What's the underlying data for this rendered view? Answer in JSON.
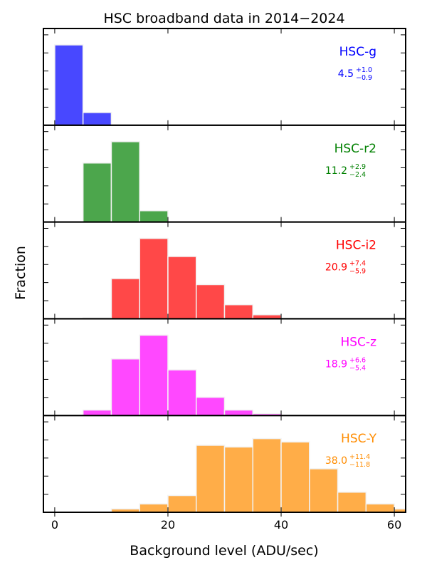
{
  "chart_data": {
    "type": "bar",
    "title": "HSC broadband data in 2014−2024",
    "xlabel": "Background level (ADU/sec)",
    "ylabel": "Fraction",
    "xlim": [
      -2,
      62
    ],
    "xticks": [
      0,
      20,
      40,
      60
    ],
    "xtick_labels": [
      "0",
      "20",
      "40",
      "60"
    ],
    "bin_width": 5,
    "panels": [
      {
        "name": "HSC-g",
        "color": "#0000ff",
        "bar_color": "#4848ff",
        "median": "4.5",
        "err_plus": "+1.0",
        "err_minus": "−0.9",
        "ylim": [
          0,
          0.82
        ],
        "bins": [
          {
            "x0": 0,
            "x1": 5,
            "value": 0.82
          },
          {
            "x0": 5,
            "x1": 10,
            "value": 0.13
          }
        ]
      },
      {
        "name": "HSC-r2",
        "color": "#008000",
        "bar_color": "#4ca64c",
        "median": "11.2",
        "err_plus": "+2.9",
        "err_minus": "−2.4",
        "ylim": [
          0,
          0.64
        ],
        "bins": [
          {
            "x0": 5,
            "x1": 10,
            "value": 0.47
          },
          {
            "x0": 10,
            "x1": 15,
            "value": 0.64
          },
          {
            "x0": 15,
            "x1": 20,
            "value": 0.09
          }
        ]
      },
      {
        "name": "HSC-i2",
        "color": "#ff0000",
        "bar_color": "#ff4848",
        "median": "20.9",
        "err_plus": "+7.4",
        "err_minus": "−5.9",
        "ylim": [
          0,
          0.4
        ],
        "bins": [
          {
            "x0": 5,
            "x1": 10,
            "value": 0.005
          },
          {
            "x0": 10,
            "x1": 15,
            "value": 0.2
          },
          {
            "x0": 15,
            "x1": 20,
            "value": 0.4
          },
          {
            "x0": 20,
            "x1": 25,
            "value": 0.31
          },
          {
            "x0": 25,
            "x1": 30,
            "value": 0.17
          },
          {
            "x0": 30,
            "x1": 35,
            "value": 0.07
          },
          {
            "x0": 35,
            "x1": 40,
            "value": 0.02
          }
        ]
      },
      {
        "name": "HSC-z",
        "color": "#ff00ff",
        "bar_color": "#ff48ff",
        "median": "18.9",
        "err_plus": "+6.6",
        "err_minus": "−5.4",
        "ylim": [
          0,
          0.44
        ],
        "bins": [
          {
            "x0": 5,
            "x1": 10,
            "value": 0.03
          },
          {
            "x0": 10,
            "x1": 15,
            "value": 0.31
          },
          {
            "x0": 15,
            "x1": 20,
            "value": 0.44
          },
          {
            "x0": 20,
            "x1": 25,
            "value": 0.25
          },
          {
            "x0": 25,
            "x1": 30,
            "value": 0.1
          },
          {
            "x0": 30,
            "x1": 35,
            "value": 0.03
          },
          {
            "x0": 35,
            "x1": 40,
            "value": 0.01
          }
        ]
      },
      {
        "name": "HSC-Y",
        "color": "#ff8c00",
        "bar_color": "#ffad48",
        "median": "38.0",
        "err_plus": "+11.4",
        "err_minus": "−11.8",
        "ylim": [
          0,
          0.24
        ],
        "bins": [
          {
            "x0": 10,
            "x1": 15,
            "value": 0.01
          },
          {
            "x0": 15,
            "x1": 20,
            "value": 0.025
          },
          {
            "x0": 20,
            "x1": 25,
            "value": 0.05
          },
          {
            "x0": 25,
            "x1": 30,
            "value": 0.2
          },
          {
            "x0": 30,
            "x1": 35,
            "value": 0.195
          },
          {
            "x0": 35,
            "x1": 40,
            "value": 0.22
          },
          {
            "x0": 40,
            "x1": 45,
            "value": 0.21
          },
          {
            "x0": 45,
            "x1": 50,
            "value": 0.13
          },
          {
            "x0": 50,
            "x1": 55,
            "value": 0.06
          },
          {
            "x0": 55,
            "x1": 60,
            "value": 0.025
          },
          {
            "x0": 60,
            "x1": 65,
            "value": 0.01
          }
        ]
      }
    ],
    "grid": false
  }
}
